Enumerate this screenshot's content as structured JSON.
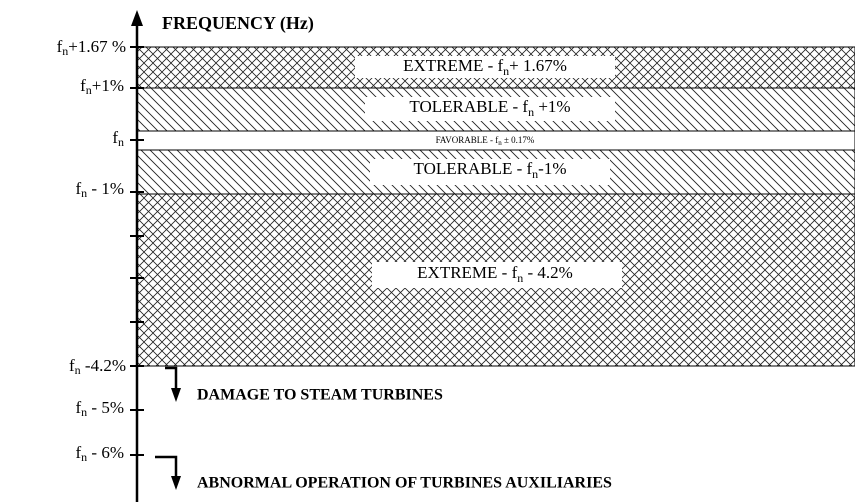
{
  "axis": {
    "title": "FREQUENCY (Hz)"
  },
  "levels": [
    {
      "base": "f",
      "sub": "n",
      "rest": "+1.67 %"
    },
    {
      "base": "f",
      "sub": "n",
      "rest": "+1%"
    },
    {
      "base": "f",
      "sub": "n",
      "rest": ""
    },
    {
      "base": "f",
      "sub": "n",
      "rest": " - 1%"
    },
    {
      "base": "f",
      "sub": "n",
      "rest": " -4.2%"
    },
    {
      "base": "f",
      "sub": "n",
      "rest": " - 5%"
    },
    {
      "base": "f",
      "sub": "n",
      "rest": " - 6%"
    }
  ],
  "bands": [
    {
      "prefix": "EXTREME - f",
      "sub": "n",
      "suffix": "+ 1.67%"
    },
    {
      "prefix": "TOLERABLE - f",
      "sub": "n",
      "suffix": " +1%"
    },
    {
      "prefix": "FAVORABLE - f",
      "sub": "n",
      "suffix": " ± 0.17%"
    },
    {
      "prefix": "TOLERABLE - f",
      "sub": "n",
      "suffix": "-1%"
    },
    {
      "prefix": "EXTREME - f",
      "sub": "n",
      "suffix": " - 4.2%"
    }
  ],
  "notes": [
    "DAMAGE TO STEAM TURBINES",
    "ABNORMAL OPERATION OF TURBINES AUXILIARIES"
  ]
}
